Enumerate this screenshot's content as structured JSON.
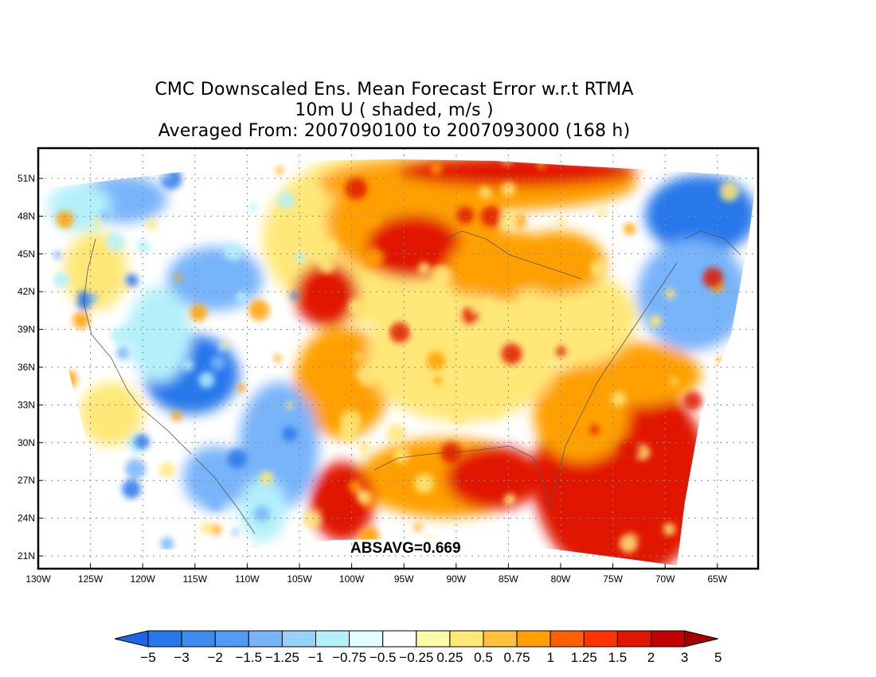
{
  "title": {
    "line1": "CMC Downscaled Ens. Mean Forecast Error w.r.t RTMA",
    "line2": "10m U ( shaded, m/s )",
    "line3": "Averaged From: 2007090100 to 2007093000 (168 h)"
  },
  "annotation": "ABSAVG=0.669",
  "lat_labels": [
    "51N",
    "48N",
    "45N",
    "42N",
    "39N",
    "36N",
    "33N",
    "30N",
    "27N",
    "24N",
    "21N"
  ],
  "lon_labels": [
    "130W",
    "125W",
    "120W",
    "115W",
    "110W",
    "105W",
    "100W",
    "95W",
    "90W",
    "85W",
    "80W",
    "75W",
    "70W",
    "65W"
  ],
  "colorbar": {
    "colors": [
      "#1e64e6",
      "#2878eb",
      "#3c8cf0",
      "#509bf5",
      "#78b4fa",
      "#96d2fa",
      "#b4f0fa",
      "#e1ffff",
      "#ffffff",
      "#fffaaa",
      "#ffe878",
      "#ffc03c",
      "#ffa000",
      "#ff6000",
      "#ff3200",
      "#e11400",
      "#c00000",
      "#a50000"
    ],
    "labels": [
      "-5",
      "-3",
      "-2",
      "-1.5",
      "-1.25",
      "-1",
      "-0.75",
      "-0.5",
      "-0.25",
      "0.25",
      "0.5",
      "0.75",
      "1",
      "1.25",
      "1.5",
      "2",
      "3",
      "5"
    ]
  },
  "colors": {
    "strong_negative": "#2878eb",
    "negative": "#78b4fa",
    "weak_negative": "#b4f0fa",
    "weak_positive": "#ffe878",
    "positive": "#ffa000",
    "strong_positive": "#e11400"
  }
}
